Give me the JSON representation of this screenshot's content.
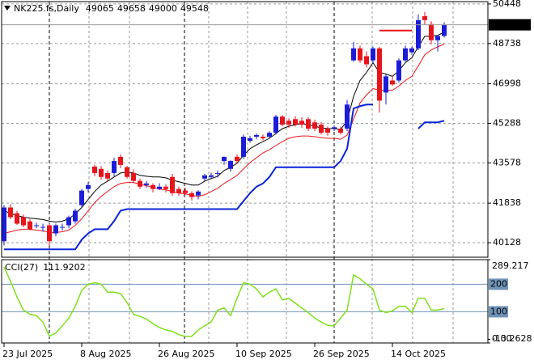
{
  "chart_data": [
    {
      "type": "candlestick",
      "title": "NK225.fs,Daily",
      "categories": [
        "23 Jul 2025",
        null,
        null,
        null,
        null,
        null,
        null,
        null,
        null,
        null,
        null,
        null,
        "8 Aug 2025",
        null,
        null,
        null,
        null,
        null,
        null,
        null,
        null,
        null,
        null,
        null,
        "26 Aug 2025",
        null,
        null,
        null,
        null,
        null,
        null,
        null,
        null,
        null,
        null,
        null,
        "10 Sep 2025",
        null,
        null,
        null,
        null,
        null,
        null,
        null,
        null,
        null,
        null,
        null,
        "26 Sep 2025",
        null,
        null,
        null,
        null,
        null,
        null,
        null,
        null,
        null,
        null,
        null,
        "14 Oct 2025",
        null,
        null,
        null,
        null,
        null,
        null,
        null,
        null
      ],
      "open": [
        40190,
        41650,
        41400,
        41230,
        41050,
        40880,
        40810,
        40880,
        40530,
        40810,
        40880,
        41050,
        41750,
        42450,
        43420,
        43320,
        43140,
        43140,
        43840,
        43390,
        43140,
        42800,
        42620,
        42620,
        42450,
        42550,
        42970,
        42450,
        42380,
        42270,
        42170,
        42900,
        42970,
        43140,
        43660,
        43320,
        43840,
        43840,
        44530,
        44710,
        44710,
        44710,
        44880,
        45580,
        45400,
        45470,
        45400,
        45470,
        45330,
        45230,
        45060,
        45060,
        45060,
        45060,
        48010,
        48530,
        48190,
        48010,
        48530,
        46620,
        47140,
        47140,
        48010,
        48360,
        48530,
        49920,
        49580,
        48880,
        49065
      ],
      "high": [
        41750,
        41800,
        41500,
        41350,
        41150,
        41000,
        40950,
        40950,
        40950,
        40950,
        41300,
        41600,
        42450,
        42750,
        43500,
        43450,
        43250,
        43800,
        43950,
        43450,
        43300,
        42900,
        42800,
        42700,
        42700,
        42650,
        43100,
        42550,
        42500,
        42350,
        42400,
        43100,
        43150,
        43250,
        43850,
        43700,
        43950,
        44800,
        44750,
        44850,
        44800,
        44950,
        45650,
        45650,
        45500,
        45600,
        45550,
        45550,
        45450,
        45350,
        45150,
        45200,
        45150,
        46300,
        48800,
        48650,
        48400,
        48600,
        48600,
        47400,
        47350,
        48100,
        48650,
        48600,
        50000,
        50100,
        49700,
        49100,
        49658
      ],
      "low": [
        40010,
        41150,
        40900,
        40800,
        40650,
        40750,
        40600,
        40010,
        40400,
        40650,
        40750,
        40950,
        41650,
        42300,
        43000,
        42850,
        42800,
        43000,
        43350,
        42900,
        42700,
        42450,
        42500,
        42300,
        42400,
        42300,
        42150,
        42150,
        42200,
        41950,
        42000,
        42800,
        42900,
        42950,
        43500,
        43200,
        43550,
        43750,
        44450,
        44600,
        44550,
        44650,
        44800,
        45150,
        45100,
        45150,
        45100,
        44950,
        44950,
        44800,
        44750,
        44950,
        44800,
        44950,
        47950,
        47900,
        47700,
        47900,
        45750,
        46100,
        46900,
        47050,
        47950,
        48250,
        48450,
        49550,
        48700,
        48400,
        49000
      ],
      "close": [
        41650,
        41230,
        40950,
        40880,
        40710,
        40880,
        40810,
        40190,
        40880,
        40810,
        41230,
        41510,
        42380,
        42620,
        43140,
        42970,
        42900,
        43660,
        43490,
        42970,
        42800,
        42550,
        42690,
        42450,
        42550,
        42450,
        42270,
        42270,
        42270,
        42100,
        42340,
        43040,
        43040,
        43140,
        43840,
        43660,
        43660,
        44710,
        44640,
        44780,
        44640,
        44880,
        45580,
        45230,
        45230,
        45230,
        45230,
        45060,
        45060,
        44880,
        44880,
        45120,
        44880,
        46100,
        48530,
        48010,
        47840,
        48530,
        46270,
        47320,
        46970,
        48010,
        48530,
        48530,
        49750,
        49750,
        48880,
        49060,
        49548
      ],
      "up_color": "#1c1cd8",
      "down_color": "#e8141c",
      "series": [
        {
          "color": "#000000",
          "width": 1,
          "values": [
            41510,
            41400,
            41300,
            41230,
            41190,
            41160,
            41130,
            41060,
            41020,
            41060,
            41160,
            41370,
            41650,
            42000,
            42340,
            42620,
            42790,
            42970,
            43140,
            43180,
            43140,
            43040,
            43000,
            42970,
            42970,
            42930,
            42830,
            42760,
            42690,
            42620,
            42620,
            42790,
            42900,
            43000,
            43250,
            43390,
            43560,
            43910,
            44190,
            44360,
            44500,
            44640,
            44850,
            45060,
            45160,
            45230,
            45260,
            45230,
            45160,
            45090,
            45060,
            45060,
            45020,
            45400,
            46450,
            47140,
            47490,
            47910,
            47490,
            47420,
            47320,
            47560,
            47910,
            48120,
            48600,
            49050,
            49050,
            49090,
            49230
          ]
        },
        {
          "color": "#e8141c",
          "width": 1,
          "values": [
            40530,
            40600,
            40670,
            40710,
            40710,
            40670,
            40640,
            40570,
            40570,
            40600,
            40670,
            40880,
            41160,
            41510,
            41860,
            42130,
            42340,
            42550,
            42690,
            42730,
            42730,
            42660,
            42590,
            42520,
            42450,
            42410,
            42340,
            42270,
            42240,
            42170,
            42130,
            42200,
            42340,
            42480,
            42690,
            42860,
            43040,
            43320,
            43590,
            43800,
            44010,
            44150,
            44330,
            44500,
            44640,
            44710,
            44740,
            44740,
            44710,
            44670,
            44640,
            44640,
            44600,
            44780,
            45470,
            46170,
            46520,
            46790,
            46720,
            46720,
            46720,
            46900,
            47140,
            47320,
            47770,
            48250,
            48460,
            48600,
            48710
          ]
        },
        {
          "color": "#0a24d8",
          "width": 2,
          "values": [
            39840,
            39840,
            39840,
            39840,
            39840,
            39840,
            39840,
            39840,
            39840,
            39840,
            39840,
            39840,
            40260,
            40530,
            40710,
            40710,
            40710,
            41060,
            41510,
            41580,
            41580,
            41580,
            41580,
            41580,
            41580,
            41580,
            41580,
            41580,
            41580,
            41580,
            41580,
            41580,
            41580,
            41580,
            41580,
            41580,
            41580,
            41930,
            42270,
            42550,
            42690,
            42970,
            43390,
            43390,
            43390,
            43390,
            43390,
            43390,
            43390,
            43390,
            43390,
            43390,
            43660,
            44190,
            45930,
            46030,
            46100,
            46100,
            null,
            null,
            null,
            null,
            null,
            null,
            45060,
            45330,
            45330,
            45330,
            45400
          ]
        },
        {
          "color": "#e8141c",
          "width": 2,
          "values": [
            null,
            null,
            null,
            null,
            null,
            null,
            null,
            null,
            null,
            null,
            null,
            null,
            null,
            null,
            null,
            null,
            null,
            null,
            null,
            null,
            null,
            null,
            null,
            null,
            null,
            null,
            null,
            null,
            null,
            null,
            null,
            null,
            null,
            null,
            null,
            null,
            null,
            null,
            null,
            null,
            null,
            null,
            null,
            null,
            null,
            null,
            null,
            null,
            null,
            null,
            null,
            null,
            null,
            null,
            null,
            null,
            null,
            null,
            49300,
            49300,
            49300,
            49300,
            49300,
            49300,
            null,
            null,
            null,
            null,
            null
          ]
        }
      ],
      "ylim": [
        39500,
        50550
      ],
      "yticks": [
        50448,
        48738,
        46998,
        45288,
        43578,
        41838,
        40128
      ],
      "grid": true
    },
    {
      "type": "line",
      "title": "CCI(27)",
      "series": [
        {
          "color": "#7fe01c",
          "width": 1.5,
          "values": [
            263,
            211,
            154,
            106,
            91,
            86,
            63,
            11,
            23,
            49,
            77,
            120,
            177,
            200,
            206,
            200,
            171,
            171,
            166,
            134,
            91,
            83,
            74,
            57,
            43,
            34,
            29,
            17,
            11,
            11,
            34,
            49,
            63,
            106,
            114,
            86,
            149,
            206,
            200,
            183,
            154,
            171,
            183,
            143,
            149,
            131,
            114,
            97,
            77,
            63,
            51,
            49,
            77,
            106,
            234,
            220,
            200,
            183,
            106,
            97,
            103,
            120,
            120,
            97,
            149,
            149,
            106,
            106,
            111.9202
          ]
        }
      ],
      "ylim": [
        -13.2628,
        289.217
      ],
      "yticks": [
        289.217,
        {
          "value": 0,
          "label": "0.00"
        },
        -13.2628
      ],
      "levels": [
        200,
        100
      ],
      "level_color": "#6f93b8"
    }
  ]
}
